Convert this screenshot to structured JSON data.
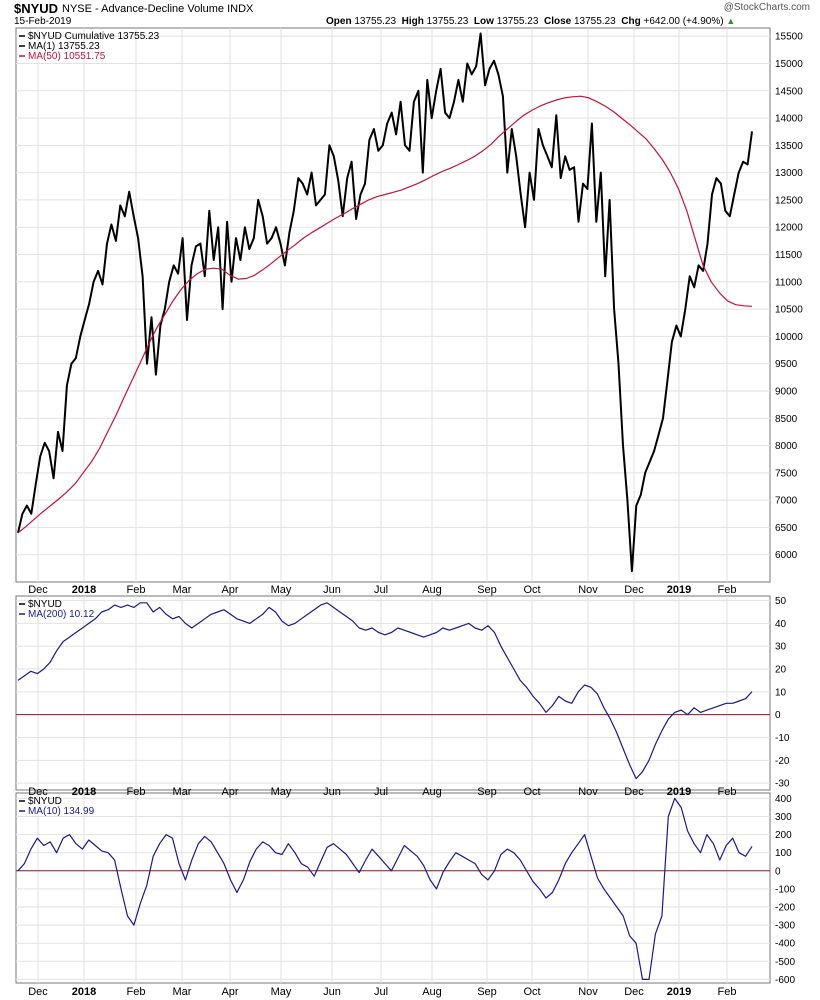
{
  "header": {
    "symbol": "$NYUD",
    "description": "NYSE - Advance-Decline Volume INDX",
    "date": "15-Feb-2019",
    "watermark": "@StockCharts.com",
    "open_label": "Open",
    "open": "13755.23",
    "high_label": "High",
    "high": "13755.23",
    "low_label": "Low",
    "low": "13755.23",
    "close_label": "Close",
    "close": "13755.23",
    "chg_label": "Chg",
    "chg": "+642.00 (+4.90%)",
    "up_arrow": "▲"
  },
  "colors": {
    "price": "#000000",
    "ma50": "#c0143c",
    "osc": "#1a1a8c",
    "zero": "#a0102a",
    "grid": "#e2e2e2",
    "border": "#777777"
  },
  "legends": {
    "main": [
      "$NYUD Cumulative 13755.23",
      "MA(1) 13755.23",
      "MA(50) 10551.75"
    ],
    "p2": [
      "$NYUD",
      "MA(200) 10.12"
    ],
    "p3": [
      "$NYUD",
      "MA(10) 134.99"
    ]
  },
  "chart_data": [
    {
      "type": "line",
      "x_month_ticks": [
        "Dec",
        "2018",
        "Feb",
        "Mar",
        "Apr",
        "May",
        "Jun",
        "Jul",
        "Aug",
        "Sep",
        "Oct",
        "Nov",
        "Dec",
        "2019",
        "Feb"
      ],
      "ylim": [
        5500,
        15650
      ],
      "yticks": [
        6000,
        6500,
        7000,
        7500,
        8000,
        8500,
        9000,
        9500,
        10000,
        10500,
        11000,
        11500,
        12000,
        12500,
        13000,
        13500,
        14000,
        14500,
        15000,
        15500
      ],
      "series": [
        {
          "name": "$NYUD Cumulative",
          "color": "#000000",
          "values": [
            6400,
            6750,
            6900,
            6750,
            7300,
            7800,
            8050,
            7900,
            7400,
            8250,
            7900,
            9100,
            9500,
            9600,
            10000,
            10300,
            10600,
            11000,
            11200,
            10950,
            11700,
            12050,
            11750,
            12400,
            12200,
            12650,
            12200,
            11800,
            11100,
            9500,
            10350,
            9300,
            10200,
            10500,
            11000,
            11300,
            11150,
            11800,
            10300,
            11300,
            11650,
            11700,
            11100,
            12300,
            11400,
            12000,
            10500,
            12100,
            11000,
            11800,
            11400,
            12000,
            11600,
            11800,
            12500,
            12200,
            11700,
            11800,
            12000,
            11700,
            11300,
            11900,
            12300,
            12900,
            12800,
            12600,
            13000,
            12400,
            12500,
            12600,
            13500,
            13300,
            12850,
            12200,
            12900,
            13200,
            12150,
            12600,
            12800,
            13600,
            13800,
            13400,
            13500,
            13900,
            14100,
            13700,
            14300,
            13500,
            13400,
            14300,
            14500,
            13000,
            14700,
            14000,
            14500,
            14900,
            14100,
            14000,
            14300,
            14700,
            14300,
            15000,
            14800,
            14950,
            15550,
            14600,
            14900,
            15050,
            14800,
            14400,
            13000,
            13800,
            13300,
            12600,
            12000,
            13000,
            12500,
            13800,
            13500,
            13300,
            13100,
            14050,
            12900,
            13300,
            13050,
            13100,
            12100,
            12800,
            12700,
            13900,
            12100,
            13000,
            11100,
            12500,
            10500,
            9500,
            8000,
            7000,
            5700,
            6900,
            7100,
            7500,
            7700,
            7900,
            8200,
            8500,
            9200,
            9900,
            10200,
            10000,
            10500,
            11100,
            10900,
            11300,
            11200,
            11700,
            12600,
            12900,
            12800,
            12300,
            12200,
            12600,
            13000,
            13200,
            13150,
            13755.23
          ]
        },
        {
          "name": "MA(50)",
          "color": "#c0143c",
          "values": [
            6400,
            6520,
            6650,
            6780,
            6900,
            7020,
            7150,
            7300,
            7500,
            7700,
            7950,
            8250,
            8550,
            8880,
            9200,
            9520,
            9850,
            10150,
            10400,
            10650,
            10860,
            11030,
            11150,
            11230,
            11250,
            11230,
            11120,
            11050,
            11060,
            11120,
            11220,
            11330,
            11450,
            11570,
            11680,
            11800,
            11900,
            11990,
            12080,
            12170,
            12250,
            12340,
            12420,
            12500,
            12560,
            12600,
            12640,
            12680,
            12740,
            12800,
            12870,
            12950,
            13020,
            13080,
            13150,
            13220,
            13300,
            13400,
            13520,
            13670,
            13800,
            13930,
            14050,
            14140,
            14220,
            14280,
            14330,
            14370,
            14390,
            14400,
            14370,
            14300,
            14220,
            14120,
            14000,
            13880,
            13750,
            13620,
            13440,
            13240,
            13000,
            12700,
            12300,
            11800,
            11300,
            11000,
            10800,
            10650,
            10580,
            10560,
            10551.75
          ]
        }
      ]
    },
    {
      "type": "line",
      "ylim": [
        -33,
        52
      ],
      "yticks": [
        -30,
        -20,
        -10,
        0,
        10,
        20,
        30,
        40,
        50
      ],
      "series": [
        {
          "name": "MA(200)",
          "color": "#1a1a8c",
          "values": [
            15,
            17,
            19,
            18,
            20,
            23,
            28,
            32,
            34,
            36,
            38,
            40,
            42,
            45,
            46,
            48,
            47,
            48,
            47,
            49,
            49,
            45,
            47,
            44,
            42,
            43,
            40,
            38,
            40,
            42,
            44,
            45,
            46,
            44,
            42,
            41,
            40,
            42,
            44,
            47,
            45,
            41,
            39,
            40,
            42,
            44,
            46,
            48,
            49,
            47,
            45,
            43,
            41,
            38,
            37,
            38,
            36,
            35,
            36,
            38,
            37,
            36,
            35,
            34,
            35,
            36,
            38,
            37,
            38,
            39,
            40,
            38,
            37,
            39,
            36,
            30,
            25,
            20,
            15,
            12,
            8,
            5,
            1,
            4,
            8,
            6,
            5,
            10,
            13,
            12,
            9,
            3,
            -2,
            -8,
            -15,
            -22,
            -28,
            -25,
            -20,
            -13,
            -7,
            -2,
            1,
            2,
            0,
            3,
            1,
            2,
            3,
            4,
            5,
            5,
            6,
            7,
            10.12
          ]
        }
      ]
    },
    {
      "type": "line",
      "ylim": [
        -620,
        430
      ],
      "yticks": [
        -600,
        -500,
        -400,
        -300,
        -200,
        -100,
        0,
        100,
        200,
        300,
        400
      ],
      "series": [
        {
          "name": "MA(10)",
          "color": "#1a1a8c",
          "values": [
            0,
            40,
            120,
            180,
            140,
            160,
            100,
            180,
            200,
            150,
            120,
            170,
            140,
            110,
            100,
            60,
            -100,
            -250,
            -300,
            -180,
            -80,
            80,
            150,
            200,
            180,
            40,
            -50,
            60,
            150,
            190,
            160,
            100,
            40,
            -50,
            -120,
            -50,
            50,
            120,
            160,
            140,
            100,
            90,
            150,
            100,
            40,
            20,
            -30,
            50,
            130,
            150,
            120,
            90,
            40,
            -10,
            60,
            120,
            80,
            40,
            0,
            70,
            140,
            110,
            80,
            30,
            -50,
            -100,
            -10,
            50,
            100,
            80,
            60,
            40,
            -20,
            -50,
            0,
            90,
            120,
            100,
            60,
            0,
            -60,
            -100,
            -150,
            -120,
            -50,
            40,
            100,
            150,
            200,
            80,
            -40,
            -100,
            -150,
            -200,
            -250,
            -360,
            -400,
            -600,
            -600,
            -350,
            -250,
            300,
            400,
            350,
            220,
            150,
            100,
            200,
            150,
            60,
            140,
            180,
            100,
            80,
            134.99
          ]
        }
      ]
    }
  ]
}
